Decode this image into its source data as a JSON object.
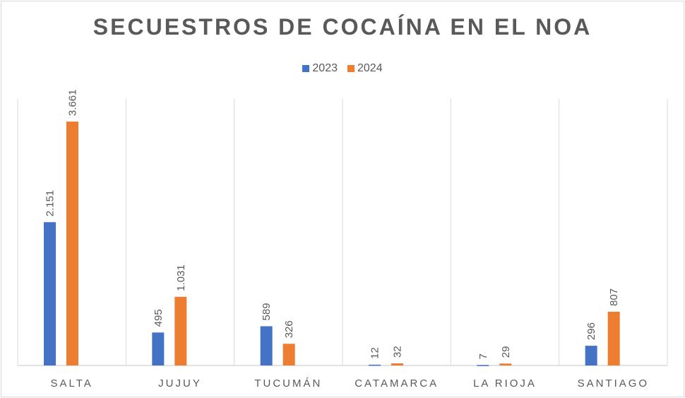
{
  "chart_data": {
    "type": "bar",
    "title": "SECUESTROS DE COCAÍNA EN EL NOA",
    "categories": [
      "SALTA",
      "JUJUY",
      "TUCUMÁN",
      "CATAMARCA",
      "LA RIOJA",
      "SANTIAGO"
    ],
    "series": [
      {
        "name": "2023",
        "color": "#4472c4",
        "values": [
          2151,
          495,
          589,
          12,
          7,
          296
        ],
        "labels": [
          "2.151",
          "495",
          "589",
          "12",
          "7",
          "296"
        ]
      },
      {
        "name": "2024",
        "color": "#ed7d31",
        "values": [
          3661,
          1031,
          326,
          32,
          29,
          807
        ],
        "labels": [
          "3.661",
          "1.031",
          "326",
          "32",
          "29",
          "807"
        ]
      }
    ],
    "ylim": [
      0,
      4000
    ],
    "legend": "top",
    "grid": "vertical category separators",
    "xlabel": "",
    "ylabel": ""
  }
}
